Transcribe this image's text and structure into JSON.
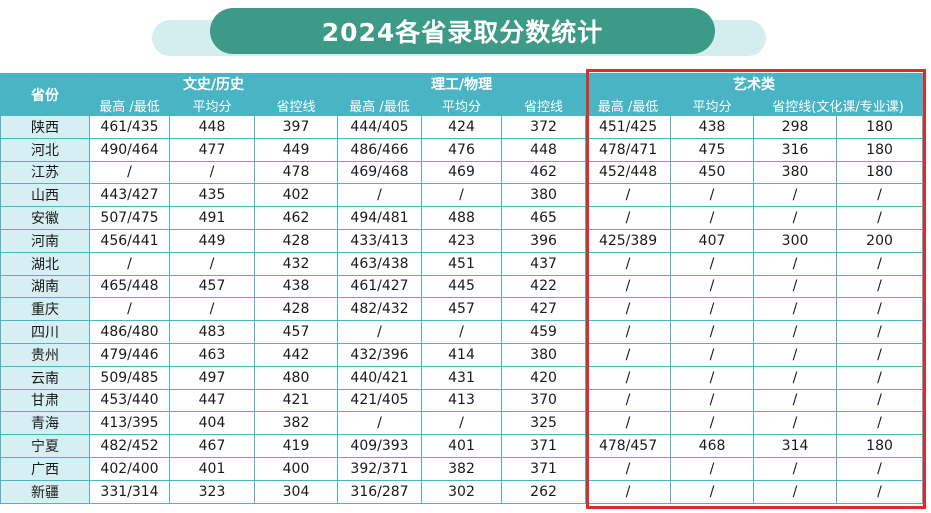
{
  "title": "2024各省录取分数统计",
  "header": {
    "province": "省份",
    "groups": [
      "文史/历史",
      "理工/物理",
      "艺术类"
    ],
    "subcols": {
      "wenshi": [
        "最高 /最低",
        "平均分",
        "省控线"
      ],
      "ligong": [
        "最高 /最低",
        "平均分",
        "省控线"
      ],
      "yishu": [
        "最高 /最低",
        "平均分",
        "省控线(文化课/专业课)"
      ]
    }
  },
  "rows": [
    {
      "p": "陕西",
      "w": [
        "461/435",
        "448",
        "397"
      ],
      "l": [
        "444/405",
        "424",
        "372"
      ],
      "a": [
        "451/425",
        "438",
        "298",
        "180"
      ]
    },
    {
      "p": "河北",
      "w": [
        "490/464",
        "477",
        "449"
      ],
      "l": [
        "486/466",
        "476",
        "448"
      ],
      "a": [
        "478/471",
        "475",
        "316",
        "180"
      ]
    },
    {
      "p": "江苏",
      "w": [
        "/",
        "/",
        "478"
      ],
      "l": [
        "469/468",
        "469",
        "462"
      ],
      "a": [
        "452/448",
        "450",
        "380",
        "180"
      ]
    },
    {
      "p": "山西",
      "w": [
        "443/427",
        "435",
        "402"
      ],
      "l": [
        "/",
        "/",
        "380"
      ],
      "a": [
        "/",
        "/",
        "/",
        "/"
      ]
    },
    {
      "p": "安徽",
      "w": [
        "507/475",
        "491",
        "462"
      ],
      "l": [
        "494/481",
        "488",
        "465"
      ],
      "a": [
        "/",
        "/",
        "/",
        "/"
      ]
    },
    {
      "p": "河南",
      "w": [
        "456/441",
        "449",
        "428"
      ],
      "l": [
        "433/413",
        "423",
        "396"
      ],
      "a": [
        "425/389",
        "407",
        "300",
        "200"
      ]
    },
    {
      "p": "湖北",
      "w": [
        "/",
        "/",
        "432"
      ],
      "l": [
        "463/438",
        "451",
        "437"
      ],
      "a": [
        "/",
        "/",
        "/",
        "/"
      ]
    },
    {
      "p": "湖南",
      "w": [
        "465/448",
        "457",
        "438"
      ],
      "l": [
        "461/427",
        "445",
        "422"
      ],
      "a": [
        "/",
        "/",
        "/",
        "/"
      ]
    },
    {
      "p": "重庆",
      "w": [
        "/",
        "/",
        "428"
      ],
      "l": [
        "482/432",
        "457",
        "427"
      ],
      "a": [
        "/",
        "/",
        "/",
        "/"
      ]
    },
    {
      "p": "四川",
      "w": [
        "486/480",
        "483",
        "457"
      ],
      "l": [
        "/",
        "/",
        "459"
      ],
      "a": [
        "/",
        "/",
        "/",
        "/"
      ]
    },
    {
      "p": "贵州",
      "w": [
        "479/446",
        "463",
        "442"
      ],
      "l": [
        "432/396",
        "414",
        "380"
      ],
      "a": [
        "/",
        "/",
        "/",
        "/"
      ]
    },
    {
      "p": "云南",
      "w": [
        "509/485",
        "497",
        "480"
      ],
      "l": [
        "440/421",
        "431",
        "420"
      ],
      "a": [
        "/",
        "/",
        "/",
        "/"
      ]
    },
    {
      "p": "甘肃",
      "w": [
        "453/440",
        "447",
        "421"
      ],
      "l": [
        "421/405",
        "413",
        "370"
      ],
      "a": [
        "/",
        "/",
        "/",
        "/"
      ]
    },
    {
      "p": "青海",
      "w": [
        "413/395",
        "404",
        "382"
      ],
      "l": [
        "/",
        "/",
        "325"
      ],
      "a": [
        "/",
        "/",
        "/",
        "/"
      ]
    },
    {
      "p": "宁夏",
      "w": [
        "482/452",
        "467",
        "419"
      ],
      "l": [
        "409/393",
        "401",
        "371"
      ],
      "a": [
        "478/457",
        "468",
        "314",
        "180"
      ]
    },
    {
      "p": "广西",
      "w": [
        "402/400",
        "401",
        "400"
      ],
      "l": [
        "392/371",
        "382",
        "371"
      ],
      "a": [
        "/",
        "/",
        "/",
        "/"
      ]
    },
    {
      "p": "新疆",
      "w": [
        "331/314",
        "323",
        "304"
      ],
      "l": [
        "316/287",
        "302",
        "262"
      ],
      "a": [
        "/",
        "/",
        "/",
        "/"
      ]
    }
  ],
  "colors": {
    "header": "#48b4c4",
    "title": "#3d9a86",
    "highlight": "#e12a2a",
    "province_cell": "#d6eff3"
  }
}
